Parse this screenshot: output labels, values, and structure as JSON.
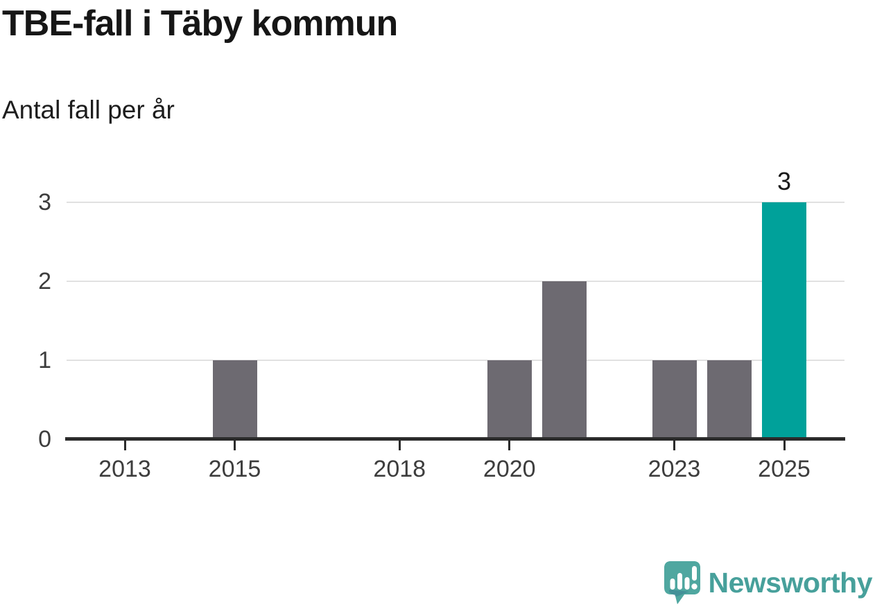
{
  "header": {
    "title": "TBE-fall i Täby kommun",
    "subtitle": "Antal fall per år"
  },
  "chart_data": {
    "type": "bar",
    "title": "TBE-fall i Täby kommun",
    "subtitle": "Antal fall per år",
    "x": [
      2013,
      2014,
      2015,
      2016,
      2017,
      2018,
      2019,
      2020,
      2021,
      2022,
      2023,
      2024,
      2025
    ],
    "values": [
      0,
      0,
      1,
      0,
      0,
      0,
      0,
      1,
      2,
      0,
      1,
      1,
      3
    ],
    "xlabel": "",
    "ylabel": "Antal fall per år",
    "ylim": [
      0,
      3
    ],
    "yticks": [
      0,
      1,
      2,
      3
    ],
    "xticks": [
      2013,
      2015,
      2018,
      2020,
      2023,
      2025
    ],
    "grid": "horizontal",
    "legend": "none",
    "highlight_x": 2025,
    "data_labels": [
      {
        "x": 2025,
        "label": "3"
      }
    ],
    "colors": {
      "bar": "#6D6A71",
      "highlight": "#00A19A",
      "axis": "#2B2B2B",
      "gridline": "#E1E1E1",
      "tick_label": "#3D3D3D",
      "value_label": "#1A1A1A"
    }
  },
  "footer": {
    "brand": "Newsworthy",
    "brand_color": "#47A09B",
    "logo_icon": "newsworthy-speech-bubble-bar-chart"
  }
}
